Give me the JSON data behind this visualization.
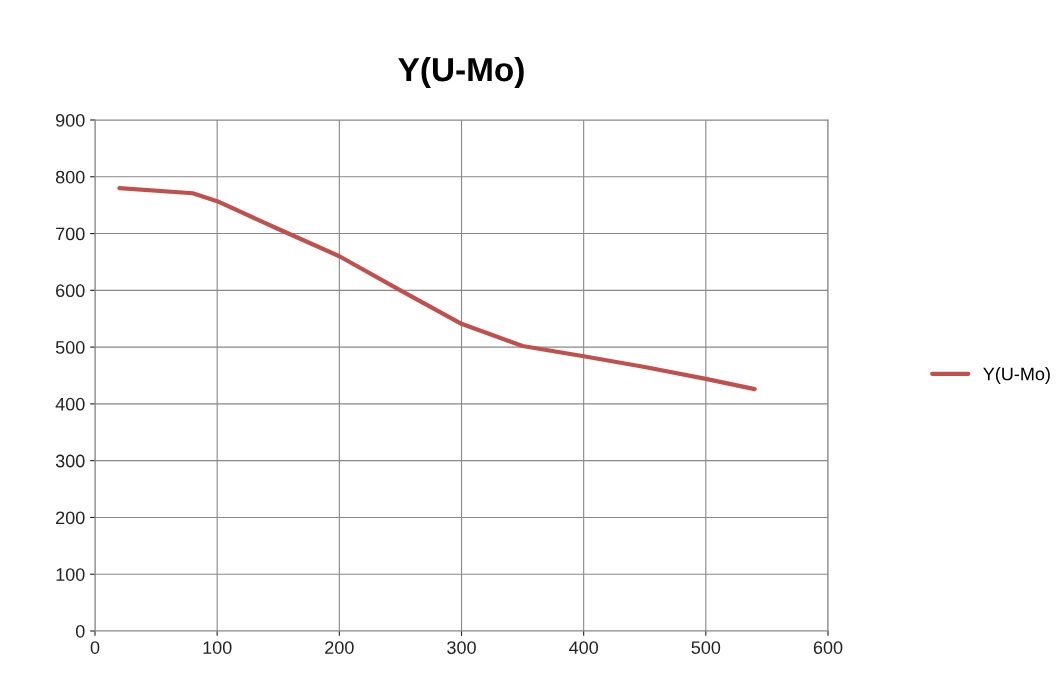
{
  "chart_data": {
    "type": "line",
    "title": "Y(U-Mo)",
    "x": [
      20,
      80,
      100,
      150,
      200,
      250,
      300,
      350,
      400,
      450,
      500,
      540
    ],
    "series": [
      {
        "name": "Y(U-Mo)",
        "color": "#c0504d",
        "values": [
          780,
          771,
          757,
          708,
          660,
          600,
          541,
          502,
          484,
          465,
          444,
          426
        ]
      }
    ],
    "xlim": [
      0,
      600
    ],
    "xticks": [
      0,
      100,
      200,
      300,
      400,
      500,
      600
    ],
    "ylim": [
      0,
      900
    ],
    "yticks": [
      0,
      100,
      200,
      300,
      400,
      500,
      600,
      700,
      800,
      900
    ],
    "grid": true,
    "legend": "right",
    "marker": "none",
    "line_style": "solid"
  }
}
